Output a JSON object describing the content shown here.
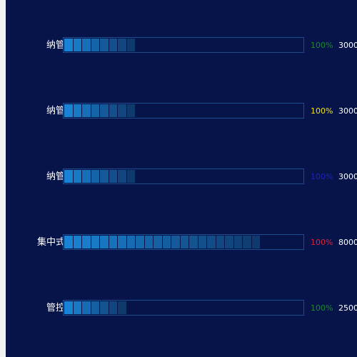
{
  "rows": [
    {
      "label": "纳管",
      "percent": "100%",
      "percent_color": "#1d8a2c",
      "value": "3000",
      "segments": 8
    },
    {
      "label": "纳管",
      "percent": "100%",
      "percent_color": "#f2e21a",
      "value": "3000",
      "segments": 8
    },
    {
      "label": "纳管",
      "percent": "100%",
      "percent_color": "#1f22b8",
      "value": "3000",
      "segments": 8
    },
    {
      "label": "集中式",
      "percent": "100%",
      "percent_color": "#e0223a",
      "value": "8000",
      "segments": 22
    },
    {
      "label": "管控",
      "percent": "100%",
      "percent_color": "#1d8a2c",
      "value": "2500",
      "segments": 7
    }
  ],
  "colors": {
    "background": "#06144a",
    "track_border": "#1c4e8f",
    "segment_bright": "#1a84d4",
    "segment_dark": "#0f3a6e"
  }
}
